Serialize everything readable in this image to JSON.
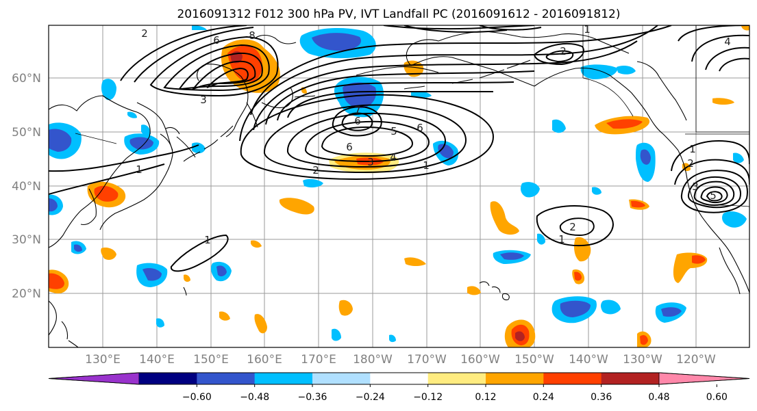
{
  "title": "2016091312 F012 300 hPa PV, IVT Landfall PC (2016091612 - 2016091812)",
  "map": {
    "lon_labels": [
      "130°E",
      "140°E",
      "150°E",
      "160°E",
      "170°E",
      "180°W",
      "170°W",
      "160°W",
      "150°W",
      "140°W",
      "130°W",
      "120°W"
    ],
    "lat_labels": [
      "60°N",
      "50°N",
      "40°N",
      "30°N",
      "20°N"
    ]
  },
  "colorbar": {
    "tick_labels": [
      "-0.60",
      "-0.48",
      "-0.36",
      "-0.24",
      "-0.12",
      "0.12",
      "0.24",
      "0.36",
      "0.48",
      "0.60"
    ],
    "colors": [
      "#9933cc",
      "#000080",
      "#3355cc",
      "#00bfff",
      "#b0e0ff",
      "#ffffff",
      "#ffec80",
      "#ffa500",
      "#ff4000",
      "#b22222",
      "#ff88aa"
    ]
  },
  "contour_labels": [
    {
      "text": "2"
    },
    {
      "text": "8"
    },
    {
      "text": "3"
    },
    {
      "text": "2"
    },
    {
      "text": "6"
    },
    {
      "text": "5"
    },
    {
      "text": "6"
    },
    {
      "text": "1"
    },
    {
      "text": "6"
    },
    {
      "text": "3"
    },
    {
      "text": "4"
    },
    {
      "text": "2"
    },
    {
      "text": "1"
    },
    {
      "text": "1"
    },
    {
      "text": "1"
    },
    {
      "text": "2"
    },
    {
      "text": "1"
    },
    {
      "text": "1"
    },
    {
      "text": "2"
    },
    {
      "text": "3"
    },
    {
      "text": "5"
    },
    {
      "text": "2"
    },
    {
      "text": "4"
    },
    {
      "text": "6"
    },
    {
      "text": "7"
    }
  ]
}
